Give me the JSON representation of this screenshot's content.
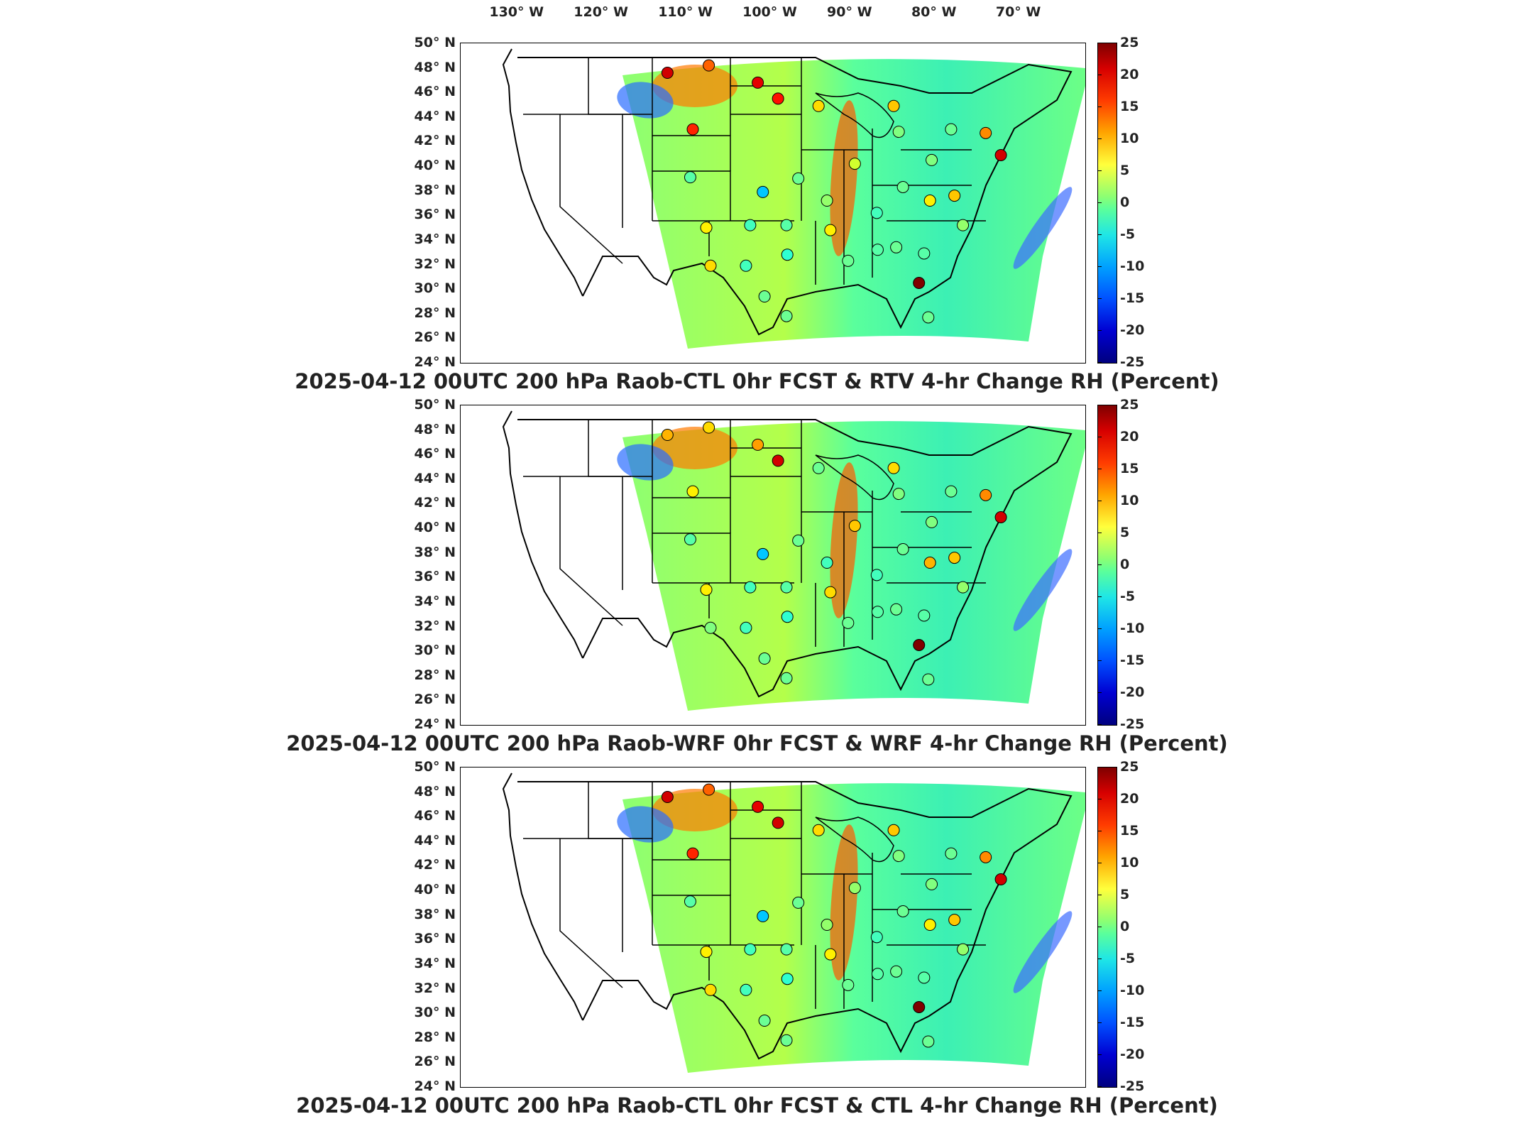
{
  "lon_labels": [
    "130",
    "120",
    "110",
    "100",
    "90",
    "80",
    "70"
  ],
  "lon_hemisphere": "W",
  "lat_labels": [
    "50",
    "48",
    "46",
    "44",
    "42",
    "40",
    "38",
    "36",
    "34",
    "32",
    "30",
    "28",
    "26",
    "24"
  ],
  "lat_hemisphere": "N",
  "degree_symbol": "°",
  "colorbar_ticks": [
    "25",
    "20",
    "15",
    "10",
    "5",
    "0",
    "-5",
    "-10",
    "-15",
    "-20",
    "-25"
  ],
  "colors": {
    "colormap": "jet",
    "min": -25,
    "max": 25
  },
  "panels": [
    {
      "title": "2025-04-12 00UTC 200 hPa Raob-CTL 0hr FCST & RTV 4-hr Change RH (Percent)",
      "stations": [
        {
          "lon": -111.5,
          "lat": 47.6,
          "value": 21
        },
        {
          "lon": -106.6,
          "lat": 48.2,
          "value": 14
        },
        {
          "lon": -100.8,
          "lat": 46.8,
          "value": 20
        },
        {
          "lon": -98.4,
          "lat": 45.5,
          "value": 18
        },
        {
          "lon": -108.5,
          "lat": 43.0,
          "value": 17
        },
        {
          "lon": -93.6,
          "lat": 44.9,
          "value": 8
        },
        {
          "lon": -84.7,
          "lat": 44.9,
          "value": 9
        },
        {
          "lon": -108.8,
          "lat": 39.1,
          "value": -2
        },
        {
          "lon": -100.2,
          "lat": 37.9,
          "value": -9
        },
        {
          "lon": -96.0,
          "lat": 39.0,
          "value": -1
        },
        {
          "lon": -89.3,
          "lat": 40.2,
          "value": 4
        },
        {
          "lon": -92.6,
          "lat": 37.2,
          "value": 1
        },
        {
          "lon": -106.9,
          "lat": 35.0,
          "value": 7
        },
        {
          "lon": -101.7,
          "lat": 35.2,
          "value": -3
        },
        {
          "lon": -97.4,
          "lat": 35.2,
          "value": -2
        },
        {
          "lon": -92.2,
          "lat": 34.8,
          "value": 7
        },
        {
          "lon": -97.3,
          "lat": 32.8,
          "value": -4
        },
        {
          "lon": -106.4,
          "lat": 31.9,
          "value": 8
        },
        {
          "lon": -102.2,
          "lat": 31.9,
          "value": -3
        },
        {
          "lon": -100.0,
          "lat": 29.4,
          "value": -1
        },
        {
          "lon": -97.4,
          "lat": 27.8,
          "value": -1
        },
        {
          "lon": -90.1,
          "lat": 32.3,
          "value": -1
        },
        {
          "lon": -86.6,
          "lat": 33.2,
          "value": -2
        },
        {
          "lon": -84.4,
          "lat": 33.4,
          "value": -1
        },
        {
          "lon": -81.1,
          "lat": 32.9,
          "value": -2
        },
        {
          "lon": -81.7,
          "lat": 30.5,
          "value": 25
        },
        {
          "lon": -80.6,
          "lat": 27.7,
          "value": -1
        },
        {
          "lon": -86.7,
          "lat": 36.2,
          "value": -3
        },
        {
          "lon": -83.6,
          "lat": 38.3,
          "value": -1
        },
        {
          "lon": -80.2,
          "lat": 40.5,
          "value": 0
        },
        {
          "lon": -80.4,
          "lat": 37.2,
          "value": 7
        },
        {
          "lon": -77.5,
          "lat": 37.6,
          "value": 9
        },
        {
          "lon": -76.5,
          "lat": 35.2,
          "value": 1
        },
        {
          "lon": -73.8,
          "lat": 42.7,
          "value": 12
        },
        {
          "lon": -72.0,
          "lat": 40.9,
          "value": 21
        },
        {
          "lon": -84.1,
          "lat": 42.8,
          "value": 0
        },
        {
          "lon": -77.9,
          "lat": 43.0,
          "value": -1
        }
      ]
    },
    {
      "title": "2025-04-12 00UTC 200 hPa Raob-WRF 0hr FCST & WRF 4-hr Change RH (Percent)",
      "stations": [
        {
          "lon": -111.5,
          "lat": 47.6,
          "value": 10
        },
        {
          "lon": -106.6,
          "lat": 48.2,
          "value": 8
        },
        {
          "lon": -100.8,
          "lat": 46.8,
          "value": 11
        },
        {
          "lon": -98.4,
          "lat": 45.5,
          "value": 21
        },
        {
          "lon": -108.5,
          "lat": 43.0,
          "value": 7
        },
        {
          "lon": -93.6,
          "lat": 44.9,
          "value": -1
        },
        {
          "lon": -84.7,
          "lat": 44.9,
          "value": 8
        },
        {
          "lon": -108.8,
          "lat": 39.1,
          "value": -2
        },
        {
          "lon": -100.2,
          "lat": 37.9,
          "value": -9
        },
        {
          "lon": -96.0,
          "lat": 39.0,
          "value": -1
        },
        {
          "lon": -89.3,
          "lat": 40.2,
          "value": 9
        },
        {
          "lon": -92.6,
          "lat": 37.2,
          "value": -3
        },
        {
          "lon": -106.9,
          "lat": 35.0,
          "value": 7
        },
        {
          "lon": -101.7,
          "lat": 35.2,
          "value": -3
        },
        {
          "lon": -97.4,
          "lat": 35.2,
          "value": -2
        },
        {
          "lon": -92.2,
          "lat": 34.8,
          "value": 8
        },
        {
          "lon": -97.3,
          "lat": 32.8,
          "value": -4
        },
        {
          "lon": -106.4,
          "lat": 31.9,
          "value": 0
        },
        {
          "lon": -102.2,
          "lat": 31.9,
          "value": -3
        },
        {
          "lon": -100.0,
          "lat": 29.4,
          "value": -1
        },
        {
          "lon": -97.4,
          "lat": 27.8,
          "value": -1
        },
        {
          "lon": -90.1,
          "lat": 32.3,
          "value": -1
        },
        {
          "lon": -86.6,
          "lat": 33.2,
          "value": -2
        },
        {
          "lon": -84.4,
          "lat": 33.4,
          "value": -1
        },
        {
          "lon": -81.1,
          "lat": 32.9,
          "value": -2
        },
        {
          "lon": -81.7,
          "lat": 30.5,
          "value": 25
        },
        {
          "lon": -80.6,
          "lat": 27.7,
          "value": -1
        },
        {
          "lon": -86.7,
          "lat": 36.2,
          "value": -3
        },
        {
          "lon": -83.6,
          "lat": 38.3,
          "value": -1
        },
        {
          "lon": -80.2,
          "lat": 40.5,
          "value": 0
        },
        {
          "lon": -80.4,
          "lat": 37.2,
          "value": 10
        },
        {
          "lon": -77.5,
          "lat": 37.6,
          "value": 9
        },
        {
          "lon": -76.5,
          "lat": 35.2,
          "value": 1
        },
        {
          "lon": -73.8,
          "lat": 42.7,
          "value": 12
        },
        {
          "lon": -72.0,
          "lat": 40.9,
          "value": 21
        },
        {
          "lon": -84.1,
          "lat": 42.8,
          "value": 0
        },
        {
          "lon": -77.9,
          "lat": 43.0,
          "value": -1
        }
      ]
    },
    {
      "title": "2025-04-12 00UTC 200 hPa Raob-CTL 0hr FCST & CTL 4-hr Change RH (Percent)",
      "stations": [
        {
          "lon": -111.5,
          "lat": 47.6,
          "value": 21
        },
        {
          "lon": -106.6,
          "lat": 48.2,
          "value": 14
        },
        {
          "lon": -100.8,
          "lat": 46.8,
          "value": 20
        },
        {
          "lon": -98.4,
          "lat": 45.5,
          "value": 21
        },
        {
          "lon": -108.5,
          "lat": 43.0,
          "value": 17
        },
        {
          "lon": -93.6,
          "lat": 44.9,
          "value": 8
        },
        {
          "lon": -84.7,
          "lat": 44.9,
          "value": 9
        },
        {
          "lon": -108.8,
          "lat": 39.1,
          "value": -2
        },
        {
          "lon": -100.2,
          "lat": 37.9,
          "value": -9
        },
        {
          "lon": -96.0,
          "lat": 39.0,
          "value": -1
        },
        {
          "lon": -89.3,
          "lat": 40.2,
          "value": 1
        },
        {
          "lon": -92.6,
          "lat": 37.2,
          "value": 1
        },
        {
          "lon": -106.9,
          "lat": 35.0,
          "value": 7
        },
        {
          "lon": -101.7,
          "lat": 35.2,
          "value": -3
        },
        {
          "lon": -97.4,
          "lat": 35.2,
          "value": -2
        },
        {
          "lon": -92.2,
          "lat": 34.8,
          "value": 7
        },
        {
          "lon": -97.3,
          "lat": 32.8,
          "value": -4
        },
        {
          "lon": -106.4,
          "lat": 31.9,
          "value": 8
        },
        {
          "lon": -102.2,
          "lat": 31.9,
          "value": -3
        },
        {
          "lon": -100.0,
          "lat": 29.4,
          "value": -1
        },
        {
          "lon": -97.4,
          "lat": 27.8,
          "value": -1
        },
        {
          "lon": -90.1,
          "lat": 32.3,
          "value": -1
        },
        {
          "lon": -86.6,
          "lat": 33.2,
          "value": -2
        },
        {
          "lon": -84.4,
          "lat": 33.4,
          "value": -1
        },
        {
          "lon": -81.1,
          "lat": 32.9,
          "value": -2
        },
        {
          "lon": -81.7,
          "lat": 30.5,
          "value": 25
        },
        {
          "lon": -80.6,
          "lat": 27.7,
          "value": -1
        },
        {
          "lon": -86.7,
          "lat": 36.2,
          "value": -3
        },
        {
          "lon": -83.6,
          "lat": 38.3,
          "value": -1
        },
        {
          "lon": -80.2,
          "lat": 40.5,
          "value": 0
        },
        {
          "lon": -80.4,
          "lat": 37.2,
          "value": 7
        },
        {
          "lon": -77.5,
          "lat": 37.6,
          "value": 9
        },
        {
          "lon": -76.5,
          "lat": 35.2,
          "value": 1
        },
        {
          "lon": -73.8,
          "lat": 42.7,
          "value": 12
        },
        {
          "lon": -72.0,
          "lat": 40.9,
          "value": 21
        },
        {
          "lon": -84.1,
          "lat": 42.8,
          "value": 0
        },
        {
          "lon": -77.9,
          "lat": 43.0,
          "value": -1
        }
      ]
    }
  ]
}
